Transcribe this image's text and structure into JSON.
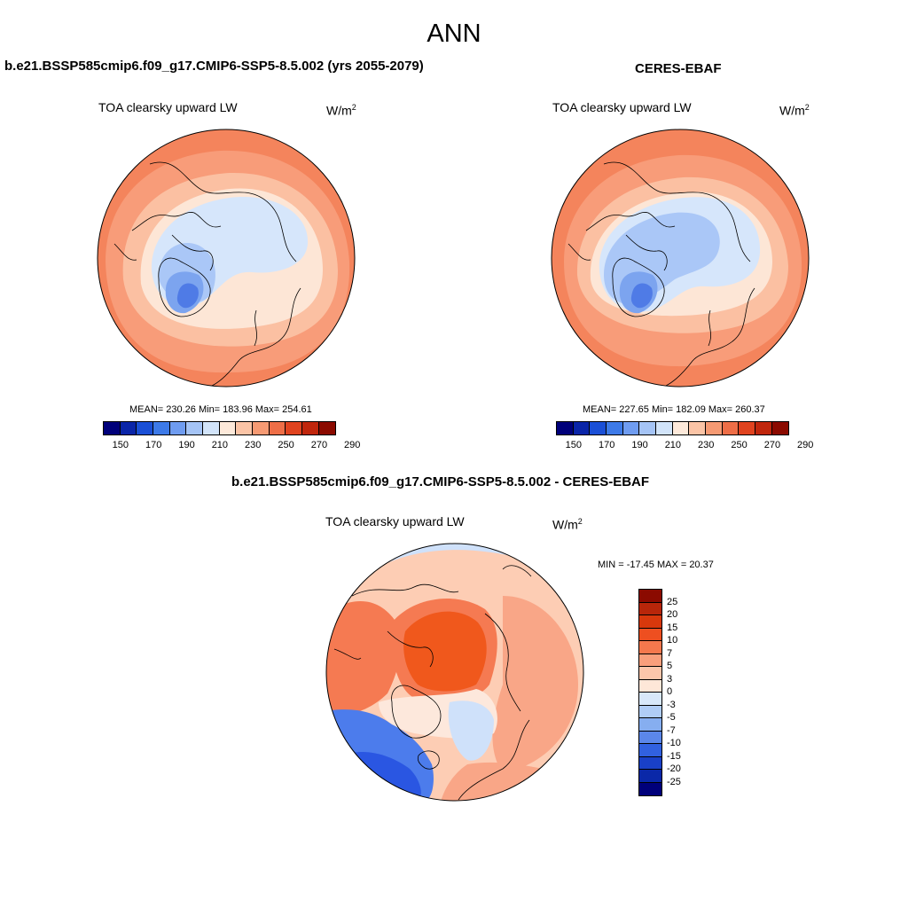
{
  "title": "ANN",
  "panels": [
    {
      "id": "model",
      "title": "b.e21.BSSP585cmip6.f09_g17.CMIP6-SSP5-8.5.002 (yrs 2055-2079)",
      "variable": "TOA clearsky upward LW",
      "units": "W/m",
      "units_exp": "2",
      "stats": "MEAN= 230.26  Min= 183.96  Max= 254.61",
      "mean": 230.26,
      "min": 183.96,
      "max": 254.61
    },
    {
      "id": "obs",
      "title": "CERES-EBAF",
      "variable": "TOA clearsky upward LW",
      "units": "W/m",
      "units_exp": "2",
      "stats": "MEAN= 227.65  Min= 182.09  Max= 260.37",
      "mean": 227.65,
      "min": 182.09,
      "max": 260.37
    },
    {
      "id": "diff",
      "title": "b.e21.BSSP585cmip6.f09_g17.CMIP6-SSP5-8.5.002 - CERES-EBAF",
      "variable": "TOA clearsky upward LW",
      "units": "W/m",
      "units_exp": "2",
      "stats": "MIN = -17.45 MAX =  20.37",
      "min": -17.45,
      "max": 20.37
    }
  ],
  "abs_colorbar": {
    "colors": [
      "#00007a",
      "#0a25a8",
      "#1a4fd6",
      "#3d7ae8",
      "#6f9cf0",
      "#a5c4f6",
      "#d2e4fa",
      "#fde9da",
      "#fbc4a6",
      "#f69a73",
      "#ee6e47",
      "#e0431f",
      "#c0260c",
      "#8b0a00"
    ],
    "labels": [
      "150",
      "170",
      "190",
      "210",
      "230",
      "250",
      "270",
      "290"
    ]
  },
  "diff_colorbar": {
    "colors": [
      "#8b0a00",
      "#b8260a",
      "#d8380c",
      "#ee4f20",
      "#f5784d",
      "#f99f7c",
      "#fcc6ab",
      "#fee7d8",
      "#d8e8fa",
      "#b0cdf6",
      "#86aef0",
      "#5b87ea",
      "#3161e0",
      "#1940c8",
      "#0a28a8",
      "#00007a"
    ],
    "labels": [
      "25",
      "20",
      "15",
      "10",
      "7",
      "5",
      "3",
      "0",
      "-3",
      "-5",
      "-7",
      "-10",
      "-15",
      "-20",
      "-25"
    ]
  },
  "map_colors": {
    "outer": "#f4845c",
    "warm1": "#f89c79",
    "warm2": "#fbc0a2",
    "neutral": "#fde6d6",
    "pale_blue": "#d6e6fb",
    "blue1": "#aac7f7",
    "blue2": "#7ca4ef",
    "blue3": "#4f7be6",
    "diff_hot": "#f0581c",
    "diff_red": "#f57a52",
    "diff_salmon": "#f9a687",
    "diff_peach": "#fdcdb4",
    "diff_pale": "#fde8dc",
    "diff_lightblue": "#cfe1fa",
    "diff_blue": "#4c7cec",
    "diff_dark_blue": "#2a56e2"
  }
}
